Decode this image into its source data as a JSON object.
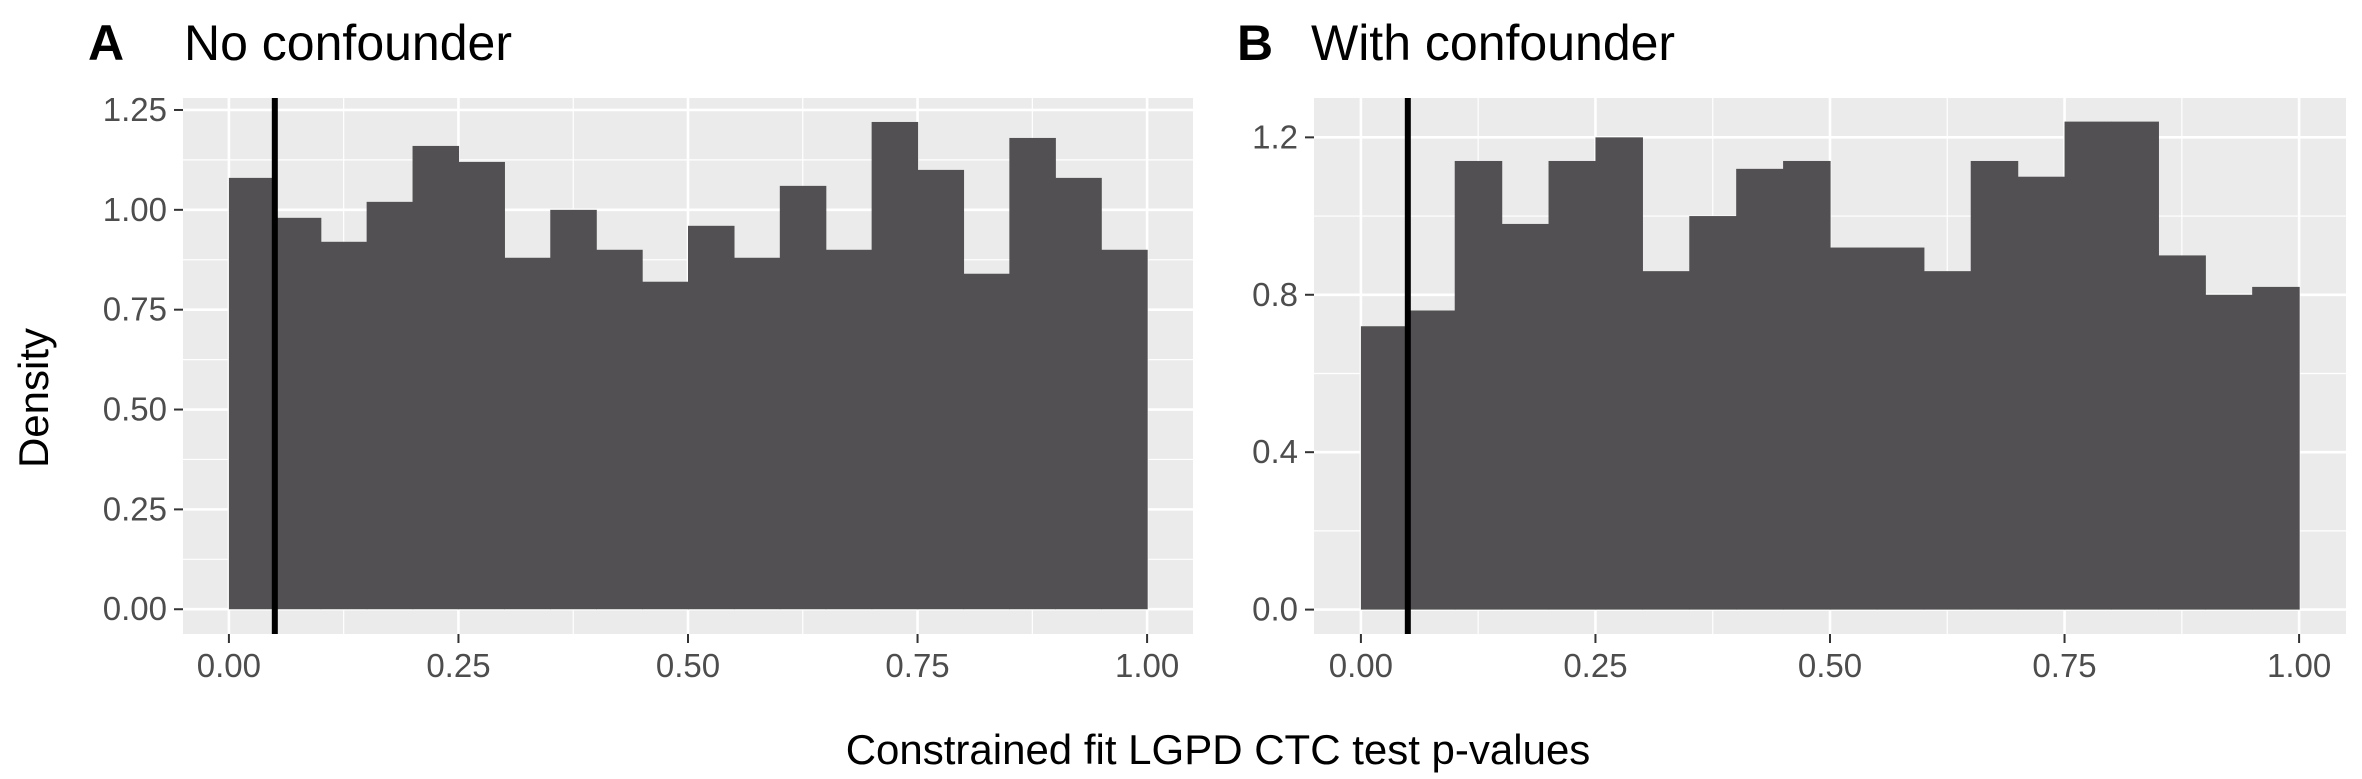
{
  "figure": {
    "xlabel": "Constrained fit LGPD CTC test p-values",
    "ylabel": "Density"
  },
  "colors": {
    "panel_bg": "#ebebeb",
    "grid": "#ffffff",
    "bar": "#525052",
    "vline": "#000000",
    "tick_text": "#4d4d4d"
  },
  "chart_data": [
    {
      "type": "bar",
      "tag": "A",
      "title": "No confounder",
      "bin_width": 0.05,
      "bin_starts": [
        0.0,
        0.05,
        0.1,
        0.15,
        0.2,
        0.25,
        0.3,
        0.35,
        0.4,
        0.45,
        0.5,
        0.55,
        0.6,
        0.65,
        0.7,
        0.75,
        0.8,
        0.85,
        0.9,
        0.95
      ],
      "values": [
        1.08,
        0.98,
        0.92,
        1.02,
        1.16,
        1.12,
        0.88,
        1.0,
        0.9,
        0.82,
        0.96,
        0.88,
        1.06,
        0.9,
        1.22,
        1.1,
        0.84,
        1.18,
        1.08,
        0.9
      ],
      "vline": 0.05,
      "xlim": [
        -0.05,
        1.05
      ],
      "ylim": [
        -0.062,
        1.28
      ],
      "xticks": [
        0.0,
        0.25,
        0.5,
        0.75,
        1.0
      ],
      "xtick_labels": [
        "0.00",
        "0.25",
        "0.50",
        "0.75",
        "1.00"
      ],
      "yticks": [
        0.0,
        0.25,
        0.5,
        0.75,
        1.0,
        1.25
      ],
      "ytick_labels": [
        "0.00",
        "0.25",
        "0.50",
        "0.75",
        "1.00",
        "1.25"
      ],
      "grid": true
    },
    {
      "type": "bar",
      "tag": "B",
      "title": "With confounder",
      "bin_width": 0.05,
      "bin_starts": [
        0.0,
        0.05,
        0.1,
        0.15,
        0.2,
        0.25,
        0.3,
        0.35,
        0.4,
        0.45,
        0.5,
        0.55,
        0.6,
        0.65,
        0.7,
        0.75,
        0.8,
        0.85,
        0.9,
        0.95
      ],
      "values": [
        0.72,
        0.76,
        1.14,
        0.98,
        1.14,
        1.2,
        0.86,
        1.0,
        1.12,
        1.14,
        0.92,
        0.92,
        0.86,
        1.14,
        1.1,
        1.24,
        1.24,
        0.9,
        0.8,
        0.82
      ],
      "vline": 0.05,
      "xlim": [
        -0.05,
        1.05
      ],
      "ylim": [
        -0.062,
        1.3
      ],
      "xticks": [
        0.0,
        0.25,
        0.5,
        0.75,
        1.0
      ],
      "xtick_labels": [
        "0.00",
        "0.25",
        "0.50",
        "0.75",
        "1.00"
      ],
      "yticks": [
        0.0,
        0.4,
        0.8,
        1.2
      ],
      "ytick_labels": [
        "0.0",
        "0.4",
        "0.8",
        "1.2"
      ],
      "grid": true
    }
  ]
}
